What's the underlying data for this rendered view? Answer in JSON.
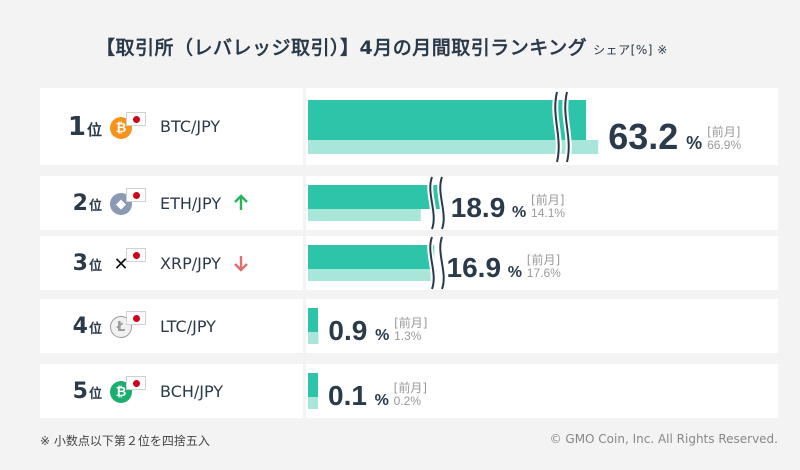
{
  "title": "【取引所（レバレッジ取引）】4月の月間取引ランキング",
  "subtitle": "シェア[%] ※",
  "footnote": "※ 小数点以下第２位を四捨五入",
  "copyright": "© GMO Coin, Inc. All Rights Reserved.",
  "rank_unit": "位",
  "prev_label": "[前月]",
  "percent_unit": "%",
  "colors": {
    "current_bar": "#2ec4a9",
    "previous_bar": "#a9e6da",
    "text_dark": "#2b3a4a",
    "text_gray": "#9a9a9a",
    "up_arrow": "#27b35a",
    "down_arrow": "#e07070"
  },
  "rows": [
    {
      "rank": "1",
      "pair": "BTC/JPY",
      "coin_icon": "bitcoin-icon",
      "coin_symbol": "₿",
      "coin_color": "#f7931a",
      "trend": "none",
      "current": "63.2",
      "previous": "66.9%"
    },
    {
      "rank": "2",
      "pair": "ETH/JPY",
      "coin_icon": "ethereum-icon",
      "coin_symbol": "◆",
      "coin_color": "#8a99b4",
      "trend": "up",
      "current": "18.9",
      "previous": "14.1%"
    },
    {
      "rank": "3",
      "pair": "XRP/JPY",
      "coin_icon": "xrp-icon",
      "coin_symbol": "✕",
      "coin_color": "#ffffff",
      "trend": "down",
      "current": "16.9",
      "previous": "17.6%"
    },
    {
      "rank": "4",
      "pair": "LTC/JPY",
      "coin_icon": "litecoin-icon",
      "coin_symbol": "Ł",
      "coin_color": "#d9d9d9",
      "trend": "none",
      "current": "0.9",
      "previous": "1.3%"
    },
    {
      "rank": "5",
      "pair": "BCH/JPY",
      "coin_icon": "bitcoin-cash-icon",
      "coin_symbol": "₿",
      "coin_color": "#1aae6f",
      "trend": "none",
      "current": "0.1",
      "previous": "0.2%"
    }
  ],
  "chart_data": {
    "type": "bar",
    "orientation": "horizontal",
    "categories": [
      "BTC/JPY",
      "ETH/JPY",
      "XRP/JPY",
      "LTC/JPY",
      "BCH/JPY"
    ],
    "series": [
      {
        "name": "",
        "values": [
          63.2,
          18.9,
          16.9,
          0.9,
          0.1
        ]
      },
      {
        "name": "前月",
        "values": [
          66.9,
          14.1,
          17.6,
          1.3,
          0.2
        ]
      }
    ],
    "axis_break": true,
    "grid": false,
    "ylabel": "シェア[%]"
  }
}
